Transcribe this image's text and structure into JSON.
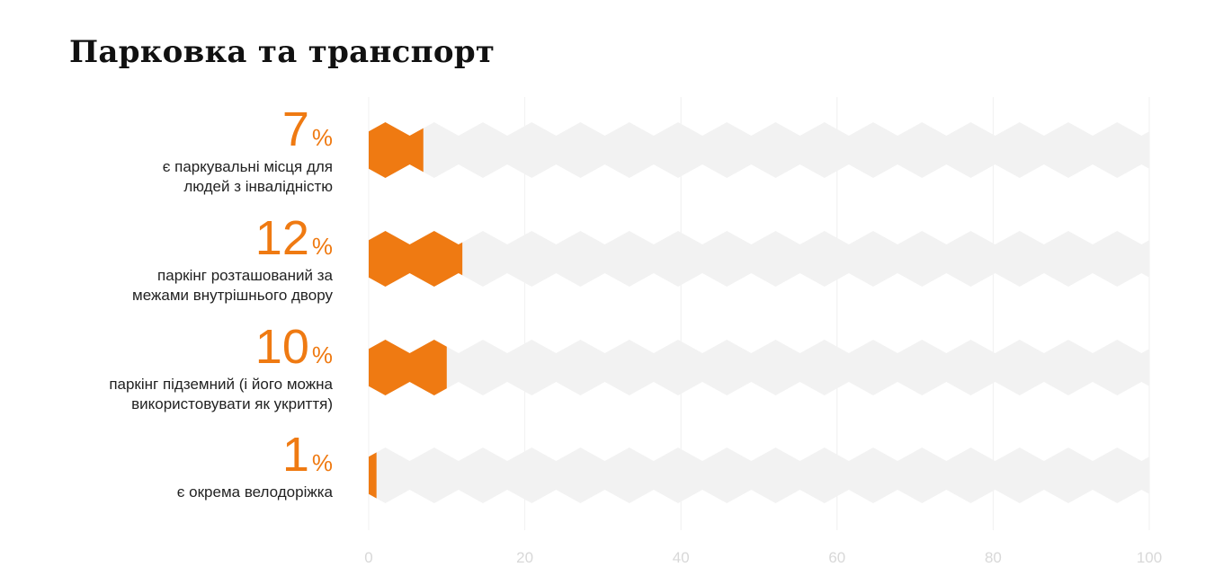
{
  "title": "Парковка та транспорт",
  "chart_data": {
    "type": "bar",
    "style": "hexagon-pictogram bars",
    "orientation": "horizontal",
    "categories": [
      "є паркувальні місця для людей з інвалідністю",
      "паркінг розташований за межами внутрішнього двору",
      "паркінг підземний (і його можна використовувати як укриття)",
      "є окрема велодоріжка"
    ],
    "label_lines": [
      [
        "є паркувальні місця для",
        "людей з інвалідністю"
      ],
      [
        "паркінг розташований за",
        "межами внутрішнього двору"
      ],
      [
        "паркінг підземний (і його можна",
        "використовувати як укриття)"
      ],
      [
        "є окрема велодоріжка"
      ]
    ],
    "values": [
      7,
      12,
      10,
      1
    ],
    "value_unit": "%",
    "xlim": [
      0,
      100
    ],
    "x_ticks": [
      "0",
      "20",
      "40",
      "60",
      "80",
      "100"
    ],
    "grid": true,
    "colors": {
      "bar": "#ef7a12",
      "track": "#f2f2f2",
      "grid": "#f0f0f0",
      "tick": "#d8d8d8"
    }
  }
}
